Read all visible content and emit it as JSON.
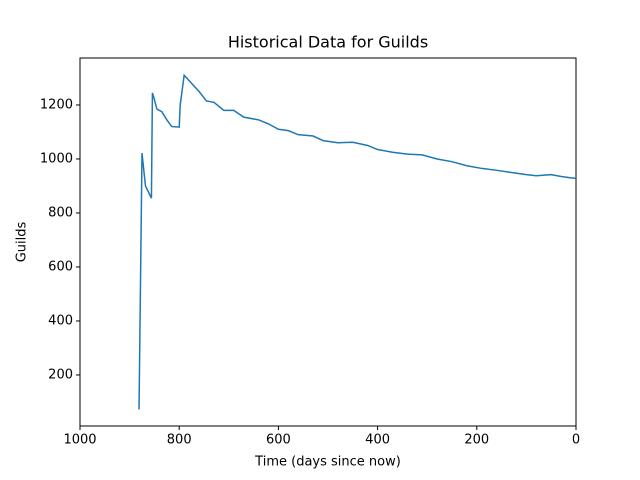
{
  "chart_data": {
    "type": "line",
    "title": "Historical Data for Guilds",
    "xlabel": "Time (days since now)",
    "ylabel": "Guilds",
    "xlim": [
      1000,
      0
    ],
    "xticks": [
      1000,
      800,
      600,
      400,
      200,
      0
    ],
    "ylim": [
      11,
      1374
    ],
    "yticks": [
      200,
      400,
      600,
      800,
      1000,
      1200
    ],
    "series": [
      {
        "name": "Guilds",
        "color": "#1f77b4",
        "x": [
          881,
          875,
          868,
          856,
          854,
          850,
          845,
          835,
          825,
          815,
          800,
          798,
          790,
          780,
          760,
          745,
          730,
          710,
          690,
          670,
          640,
          620,
          600,
          580,
          560,
          530,
          510,
          480,
          450,
          420,
          400,
          370,
          340,
          310,
          280,
          250,
          220,
          190,
          160,
          130,
          100,
          80,
          50,
          30,
          10,
          0
        ],
        "values": [
          72,
          1022,
          900,
          855,
          1245,
          1220,
          1185,
          1175,
          1145,
          1120,
          1118,
          1200,
          1310,
          1290,
          1250,
          1215,
          1210,
          1180,
          1180,
          1155,
          1145,
          1130,
          1110,
          1105,
          1090,
          1085,
          1068,
          1060,
          1062,
          1050,
          1035,
          1025,
          1018,
          1015,
          1000,
          990,
          975,
          965,
          958,
          950,
          942,
          938,
          942,
          935,
          930,
          928
        ]
      }
    ]
  }
}
